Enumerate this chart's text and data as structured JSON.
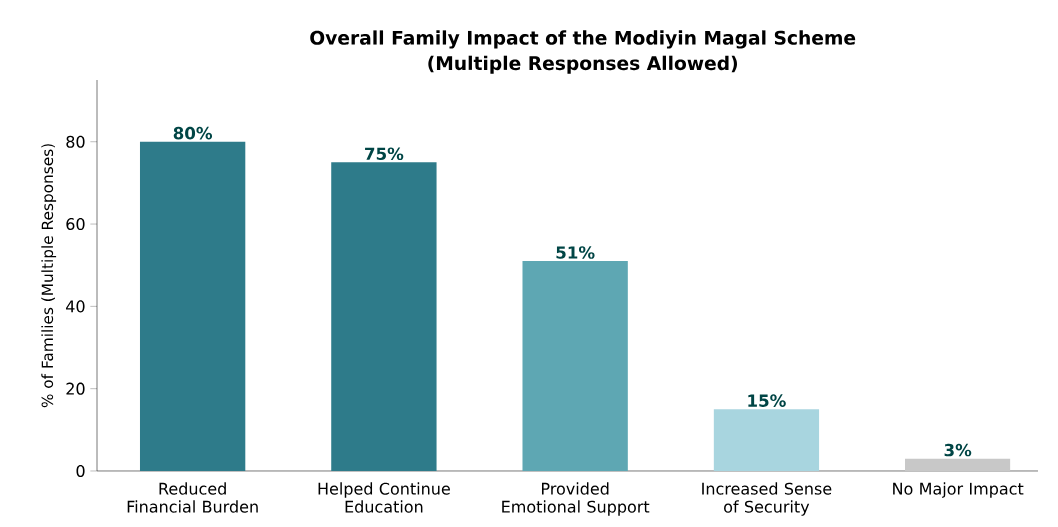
{
  "chart_data": {
    "type": "bar",
    "title": "Overall Family Impact of the Modiyin Magal Scheme",
    "subtitle": "(Multiple Responses Allowed)",
    "ylabel": "% of Families (Multiple Responses)",
    "categories": [
      "Reduced Financial Burden",
      "Helped Continue Education",
      "Provided Emotional Support",
      "Increased Sense of Security",
      "No Major Impact"
    ],
    "values": [
      80,
      75,
      51,
      15,
      3
    ],
    "value_labels": [
      "80%",
      "75%",
      "51%",
      "15%",
      "3%"
    ],
    "colors": [
      "#2e7b8a",
      "#2e7b8a",
      "#5ea7b3",
      "#a8d5df",
      "#c8c8c8"
    ],
    "ylim": [
      0,
      95
    ],
    "yticks": [
      0,
      20,
      40,
      60,
      80
    ],
    "grid": false
  }
}
